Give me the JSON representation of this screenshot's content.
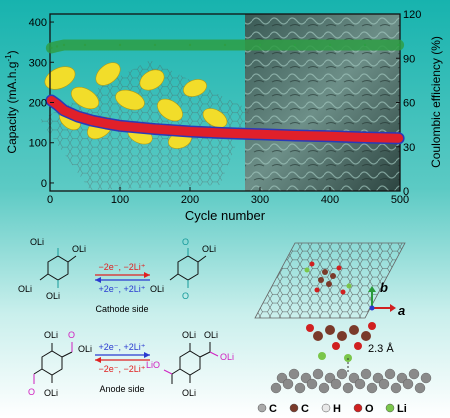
{
  "chart_data": {
    "type": "line",
    "xlabel": "Cycle number",
    "ylabel_left": "Capacity (mA.h.g",
    "ylabel_left_sup": "-1",
    "ylabel_left_close": ")",
    "ylabel_right": "Coulombic efficiency (%)",
    "xlim": [
      0,
      500
    ],
    "ylim_left": [
      -20,
      420
    ],
    "ylim_right": [
      0,
      120
    ],
    "x_ticks": [
      0,
      100,
      200,
      300,
      400,
      500
    ],
    "y_left_ticks": [
      0,
      100,
      200,
      300,
      400
    ],
    "y_right_ticks": [
      0,
      30,
      60,
      90,
      120
    ],
    "series": [
      {
        "axis": "right",
        "color": "#2e9d44",
        "x": [
          2,
          10,
          20,
          50,
          100,
          150,
          200,
          250,
          300,
          350,
          400,
          450,
          498
        ],
        "values": [
          97,
          98,
          99,
          99,
          99,
          99,
          99,
          99,
          99,
          99,
          99,
          99,
          99
        ]
      },
      {
        "axis": "left",
        "color": "#e0202a",
        "edge_color": "#2a3ab8",
        "x": [
          2,
          10,
          20,
          40,
          60,
          80,
          100,
          150,
          200,
          250,
          300,
          350,
          400,
          450,
          498
        ],
        "values": [
          205,
          195,
          180,
          165,
          155,
          148,
          142,
          134,
          128,
          124,
          121,
          118,
          116,
          113,
          111
        ]
      }
    ]
  },
  "colors": {
    "bg_top": "#1fb7b0",
    "bg_bottom": "#ffffff",
    "cathode_arrow": "#1f6fc8",
    "anode_arrow": "#8a2be2",
    "reduce_color": "#2a3ad0",
    "oxidize_color": "#e02020",
    "carbonyl_teal": "#169a9a",
    "carbonyl_magenta": "#d020c0"
  },
  "scheme": {
    "cathode": {
      "oxidation": "−2e⁻, −2Li⁺",
      "reduction": "+2e⁻, +2Li⁺",
      "side": "Cathode side",
      "left": {
        "top_left": "OLi",
        "top_right": "OLi",
        "bottom_left": "OLi",
        "bottom_right": "OLi",
        "ring_top": "OLi",
        "ring_bottom": "OLi"
      },
      "right": {
        "top": "OLi",
        "ring_top": "O",
        "ring_bottom": "O",
        "bottom": "OLi"
      }
    },
    "anode": {
      "reduction": "+2e⁻, +2Li⁺",
      "oxidation": "−2e⁻, −2Li⁺",
      "side": "Anode side",
      "left": {
        "ring_top": "OLi",
        "ring_bottom": "OLi",
        "bottom": "OLi",
        "ketone": "O"
      },
      "right": {
        "ring_top": "OLi",
        "ring_bottom": "OLi",
        "top": "OLi",
        "bottom": "LiO"
      }
    }
  },
  "structure": {
    "axis_b": "b",
    "axis_a": "a",
    "distance": "2.3 Å"
  },
  "legend": [
    {
      "label": "C",
      "color": "#a9a9a9"
    },
    {
      "label": "C",
      "color": "#7a3a2a"
    },
    {
      "label": "H",
      "color": "#e8e8e8"
    },
    {
      "label": "O",
      "color": "#d02020"
    },
    {
      "label": "Li",
      "color": "#7ac64a"
    }
  ]
}
